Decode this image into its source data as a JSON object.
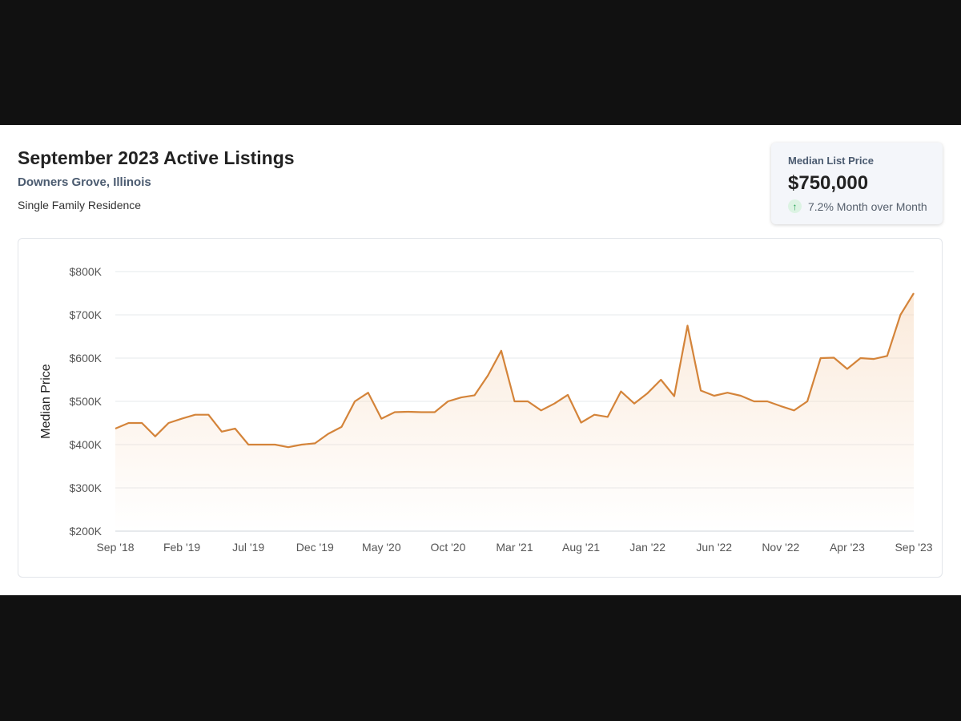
{
  "header": {
    "title": "September 2023 Active Listings",
    "location": "Downers Grove, Illinois",
    "property_type": "Single Family Residence"
  },
  "stat_card": {
    "label": "Median List Price",
    "value": "$750,000",
    "change_text": "7.2% Month over Month",
    "direction": "up",
    "icon": "arrow-up-icon",
    "change_color": "#1e9e4f"
  },
  "chart_data": {
    "type": "area",
    "ylabel": "Median Price",
    "xlabel": "",
    "ylim": [
      200000,
      800000
    ],
    "y_ticks": [
      200000,
      300000,
      400000,
      500000,
      600000,
      700000,
      800000
    ],
    "y_tick_labels": [
      "$200K",
      "$300K",
      "$400K",
      "$500K",
      "$600K",
      "$700K",
      "$800K"
    ],
    "x_tick_labels": [
      "Sep '18",
      "Feb '19",
      "Jul '19",
      "Dec '19",
      "May '20",
      "Oct '20",
      "Mar '21",
      "Aug '21",
      "Jan '22",
      "Jun '22",
      "Nov '22",
      "Apr '23",
      "Sep '23"
    ],
    "x": [
      "2018-09",
      "2018-10",
      "2018-11",
      "2018-12",
      "2019-01",
      "2019-02",
      "2019-03",
      "2019-04",
      "2019-05",
      "2019-06",
      "2019-07",
      "2019-08",
      "2019-09",
      "2019-10",
      "2019-11",
      "2019-12",
      "2020-01",
      "2020-02",
      "2020-03",
      "2020-04",
      "2020-05",
      "2020-06",
      "2020-07",
      "2020-08",
      "2020-09",
      "2020-10",
      "2020-11",
      "2020-12",
      "2021-01",
      "2021-02",
      "2021-03",
      "2021-04",
      "2021-05",
      "2021-06",
      "2021-07",
      "2021-08",
      "2021-09",
      "2021-10",
      "2021-11",
      "2021-12",
      "2022-01",
      "2022-02",
      "2022-03",
      "2022-04",
      "2022-05",
      "2022-06",
      "2022-07",
      "2022-08",
      "2022-09",
      "2022-10",
      "2022-11",
      "2022-12",
      "2023-01",
      "2023-02",
      "2023-03",
      "2023-04",
      "2023-05",
      "2023-06",
      "2023-07",
      "2023-08",
      "2023-09"
    ],
    "values": [
      437000,
      450000,
      450000,
      419000,
      450000,
      460000,
      469000,
      469000,
      430000,
      437000,
      400000,
      400000,
      400000,
      394000,
      400000,
      403000,
      425000,
      441000,
      500000,
      520000,
      460000,
      475000,
      476000,
      475000,
      475000,
      500000,
      509000,
      514000,
      560000,
      617000,
      500000,
      500000,
      479000,
      495000,
      515000,
      451000,
      469000,
      464000,
      523000,
      495000,
      519000,
      550000,
      512000,
      675000,
      525000,
      513000,
      520000,
      513000,
      500000,
      500000,
      489000,
      479000,
      500000,
      600000,
      601000,
      575000,
      600000,
      598000,
      605000,
      700000,
      750000
    ],
    "grid": true,
    "legend": "none",
    "line_color": "#d4843a",
    "fill_color": "#f7d9bd"
  }
}
